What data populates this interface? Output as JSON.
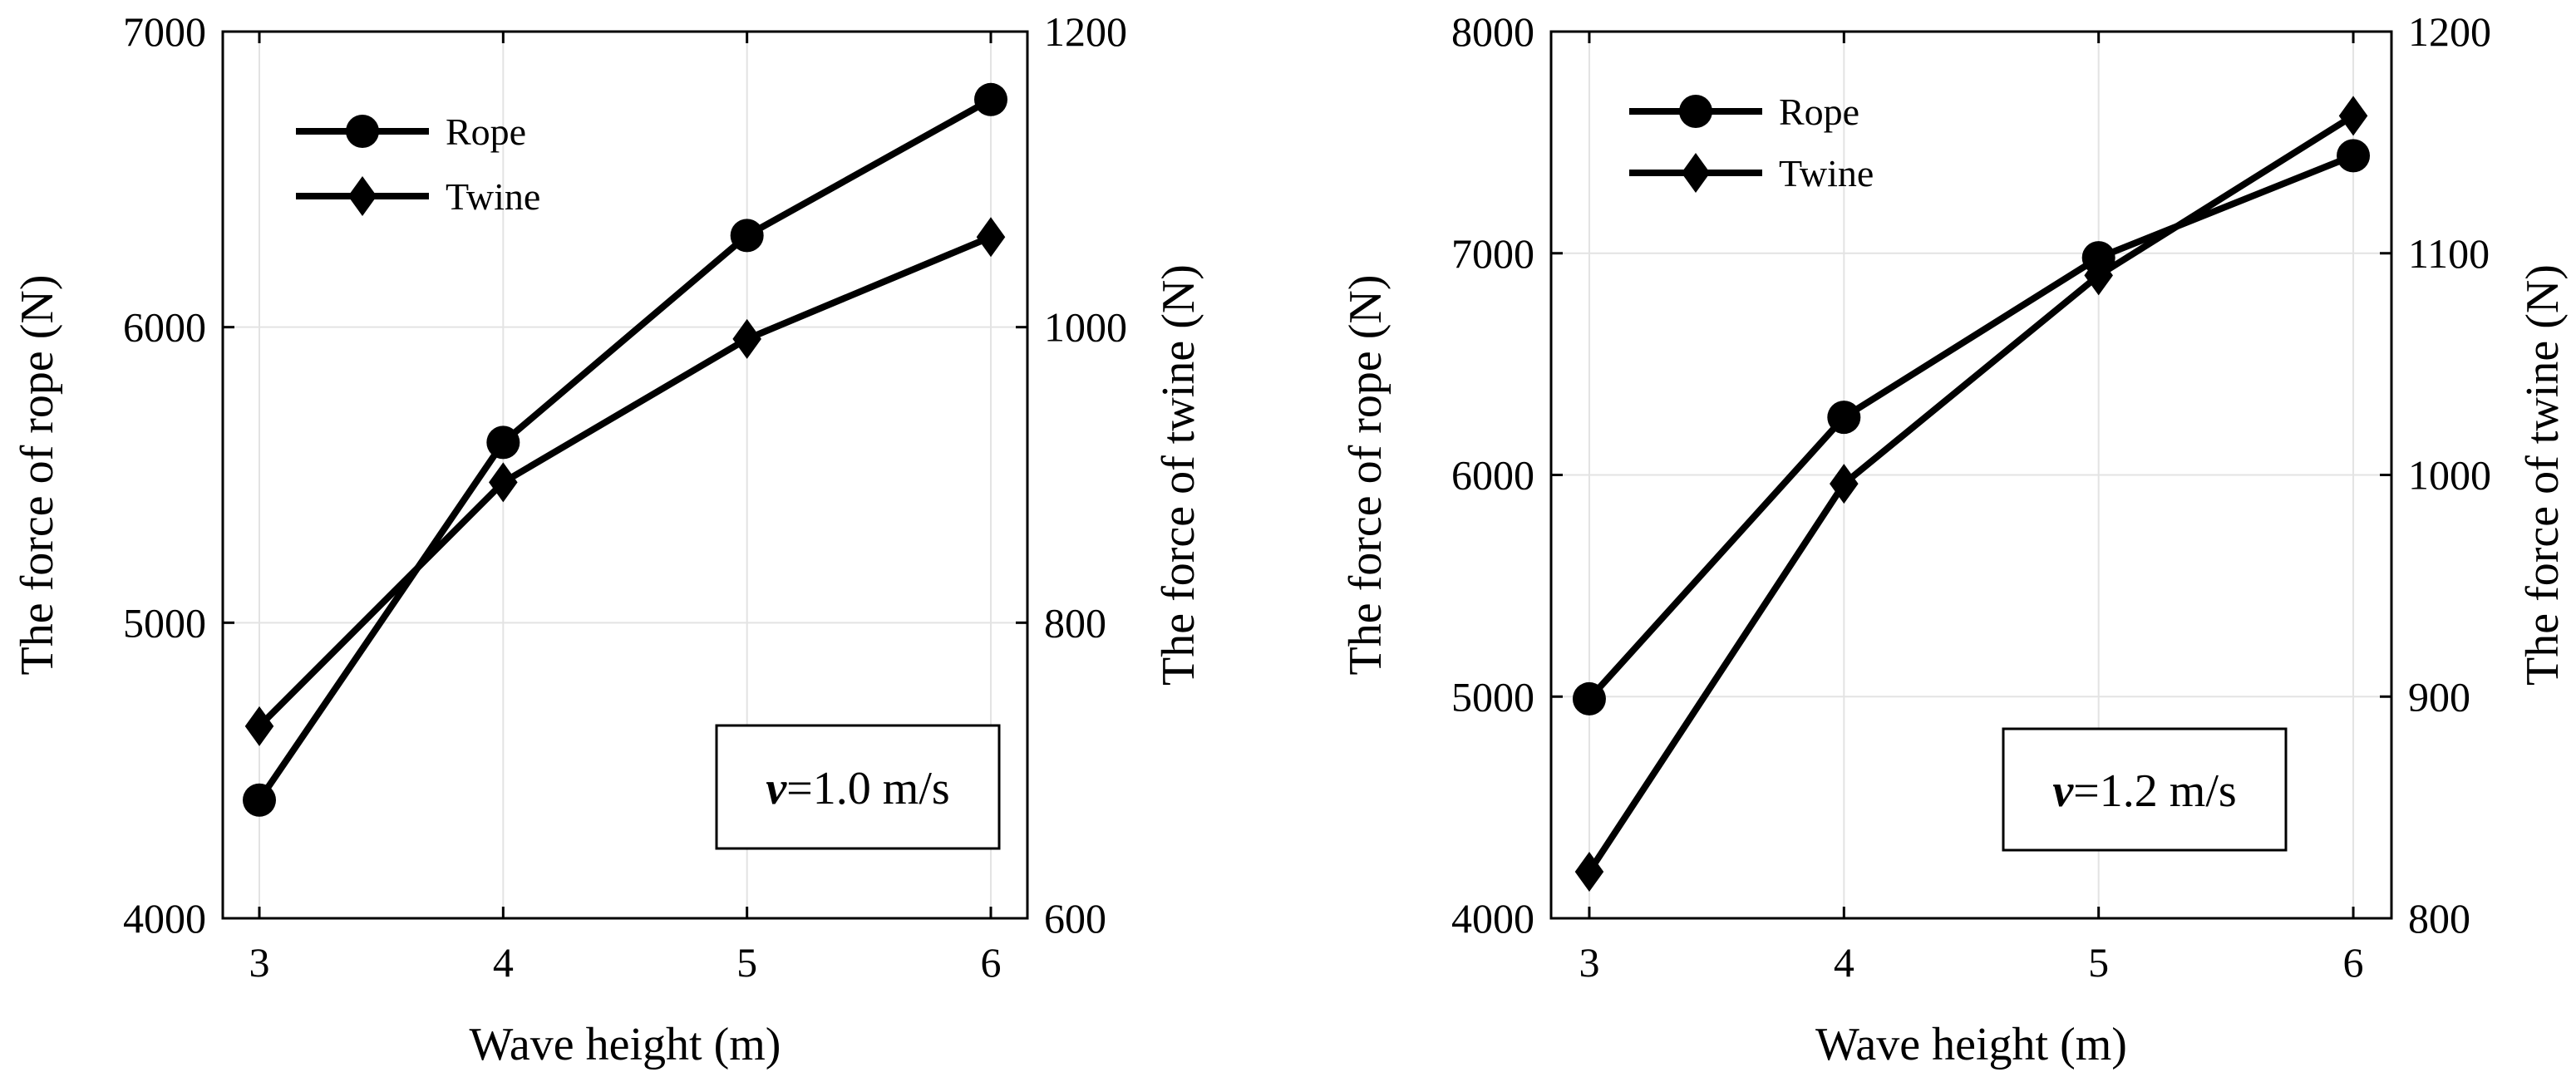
{
  "chart_data": [
    {
      "type": "line",
      "xlabel": "Wave height (m)",
      "ylabel": "The force of rope (N)",
      "y2label": "The force of twine (N)",
      "x": [
        3,
        4,
        5,
        6
      ],
      "xlim": [
        2.85,
        6.15
      ],
      "xticks": [
        3,
        4,
        5,
        6
      ],
      "ylim": [
        4000,
        7000
      ],
      "yticks": [
        4000,
        5000,
        6000,
        7000
      ],
      "y2lim": [
        600,
        1200
      ],
      "y2ticks": [
        600,
        800,
        1000,
        1200
      ],
      "grid": true,
      "legend_position": "top-left",
      "annotation": {
        "var": "v",
        "rest": "=1.0 m/s"
      },
      "series": [
        {
          "name": "Rope",
          "axis": "left",
          "marker": "circle",
          "values": [
            4400,
            5610,
            6310,
            6770
          ]
        },
        {
          "name": "Twine",
          "axis": "right",
          "marker": "diamond",
          "values": [
            730,
            895,
            992,
            1061
          ]
        }
      ]
    },
    {
      "type": "line",
      "xlabel": "Wave height (m)",
      "ylabel": "The force of rope (N)",
      "y2label": "The force of twine (N)",
      "x": [
        3,
        4,
        5,
        6
      ],
      "xlim": [
        2.85,
        6.15
      ],
      "xticks": [
        3,
        4,
        5,
        6
      ],
      "ylim": [
        4000,
        8000
      ],
      "yticks": [
        4000,
        5000,
        6000,
        7000,
        8000
      ],
      "y2lim": [
        800,
        1200
      ],
      "y2ticks": [
        800,
        900,
        1000,
        1100,
        1200
      ],
      "grid": true,
      "legend_position": "top-left",
      "annotation": {
        "var": "v",
        "rest": "=1.2 m/s"
      },
      "series": [
        {
          "name": "Rope",
          "axis": "left",
          "marker": "circle",
          "values": [
            4990,
            6260,
            6980,
            7440
          ]
        },
        {
          "name": "Twine",
          "axis": "right",
          "marker": "diamond",
          "values": [
            821,
            996,
            1090,
            1162
          ]
        }
      ]
    }
  ]
}
